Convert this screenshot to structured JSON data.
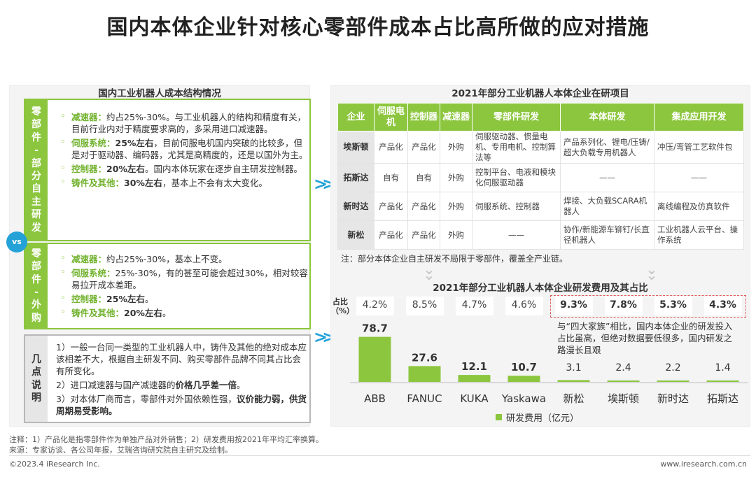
{
  "title": "国内本体企业针对核心零部件成本占比高所做的应对措施",
  "left": {
    "title": "国内工业机器人成本结构情况",
    "vs": "vs",
    "box1": {
      "label": "零部件-部分自主研发",
      "items": [
        {
          "name": "减速器：",
          "text": "约占25%-30%。与工业机器人的结构和精度有关，目前行业内对于精度要求高的，多采用进口减速器。"
        },
        {
          "name": "伺服系统：",
          "bold": "25%左右",
          "text": "，目前伺服电机国内突破的比较多，但是对于驱动器、编码器，尤其是高精度的，还是以国外为主。"
        },
        {
          "name": "控制器：",
          "bold": "20%左右",
          "text": "。国内本体玩家在逐步自主研发控制器。"
        },
        {
          "name": "铸件及其他：",
          "bold": "30%左右",
          "text": "，基本上不会有太大变化。"
        }
      ]
    },
    "box2": {
      "label": "零部件-外购",
      "items": [
        {
          "name": "减速器：",
          "text": "约占25%-30%，基本上不变。"
        },
        {
          "name": "伺服系统：",
          "text": "25%-30%，有的甚至可能会超过30%，相对较容易拉开成本差距。"
        },
        {
          "name": "控制器：",
          "bold": "25%左右",
          "text": "。"
        },
        {
          "name": "铸件及其他：",
          "bold": "20%左右",
          "text": "。"
        }
      ]
    },
    "box3": {
      "label": "几点说明",
      "p1": "1）一般一台同一类型的工业机器人中，铸件及其他的绝对成本应该相差不大，根据自主研发不同、购买零部件品牌不同其占比会有所变化。",
      "p2_pre": "2）进口减速器与国产减速器的",
      "p2_bold": "价格几乎差一倍",
      "p2_post": "。",
      "p3_pre": "3）对本体厂商而言，零部件对外国依赖性强，",
      "p3_bold": "议价能力弱，供货周期易受影响。"
    }
  },
  "right": {
    "title": "2021年部分工业机器人本体企业在研项目",
    "headers": [
      "企业",
      "伺服电机",
      "控制器",
      "减速器",
      "零部件研发",
      "本体研发",
      "集成应用开发"
    ],
    "rows": [
      [
        "埃斯顿",
        "产品化",
        "产品化",
        "外购",
        "伺服驱动器、惯量电机、专用电机、控制算法等",
        "产品系列化、锂电/压铸/超大负载专用机器人",
        "冲压/弯管工艺软件包"
      ],
      [
        "拓斯达",
        "自有",
        "自有",
        "外购",
        "控制平台、电液和模块化伺服驱动器",
        "——",
        "——"
      ],
      [
        "新时达",
        "产品化",
        "产品化",
        "外购",
        "伺服系统、控制器",
        "焊接、大负载SCARA机器人",
        "离线编程及仿真软件"
      ],
      [
        "新松",
        "产品化",
        "产品化",
        "外购",
        "——",
        "协作/新能源车铆钉/长直径机器人",
        "工业机器人云平台、操作系统"
      ]
    ],
    "note": "注：部分本体企业自主研发不局限于零部件，覆盖全产业链。"
  },
  "chart_data": {
    "type": "bar",
    "title": "2021年部分工业机器人本体企业研发费用及其占比",
    "categories": [
      "ABB",
      "FANUC",
      "KUKA",
      "Yaskawa",
      "新松",
      "埃斯顿",
      "新时达",
      "拓斯达"
    ],
    "series": [
      {
        "name": "研发费用（亿元）",
        "values": [
          78.7,
          27.6,
          12.1,
          10.7,
          3.1,
          2.4,
          2.2,
          1.4
        ]
      }
    ],
    "value_labels": [
      "78.7",
      "27.6",
      "12.1",
      "10.7",
      "3.1",
      "2.4",
      "2.2",
      "1.4"
    ],
    "percent_label": "占比（%）",
    "percents": [
      "4.2%",
      "8.5%",
      "4.7%",
      "4.6%",
      "9.3%",
      "7.8%",
      "5.3%",
      "4.3%"
    ],
    "ylim": [
      0,
      85
    ],
    "legend": "bottom",
    "color": "#8cc63e",
    "annotation": "与“四大家族”相比，国内本体企业的研发投入占比虽高，但绝对数据要低很多，国内研发之路漫长且艰"
  },
  "footer": {
    "note": "注释：1）产品化是指零部件作为单独产品对外销售；2）研发费用按2021年平均汇率换算。",
    "source": "来源：专家访谈、各公司年报，艾瑞咨询研究院自主研究及绘制。",
    "copyright": "©2023.4 iResearch Inc.",
    "url": "www.iresearch.com.cn"
  }
}
